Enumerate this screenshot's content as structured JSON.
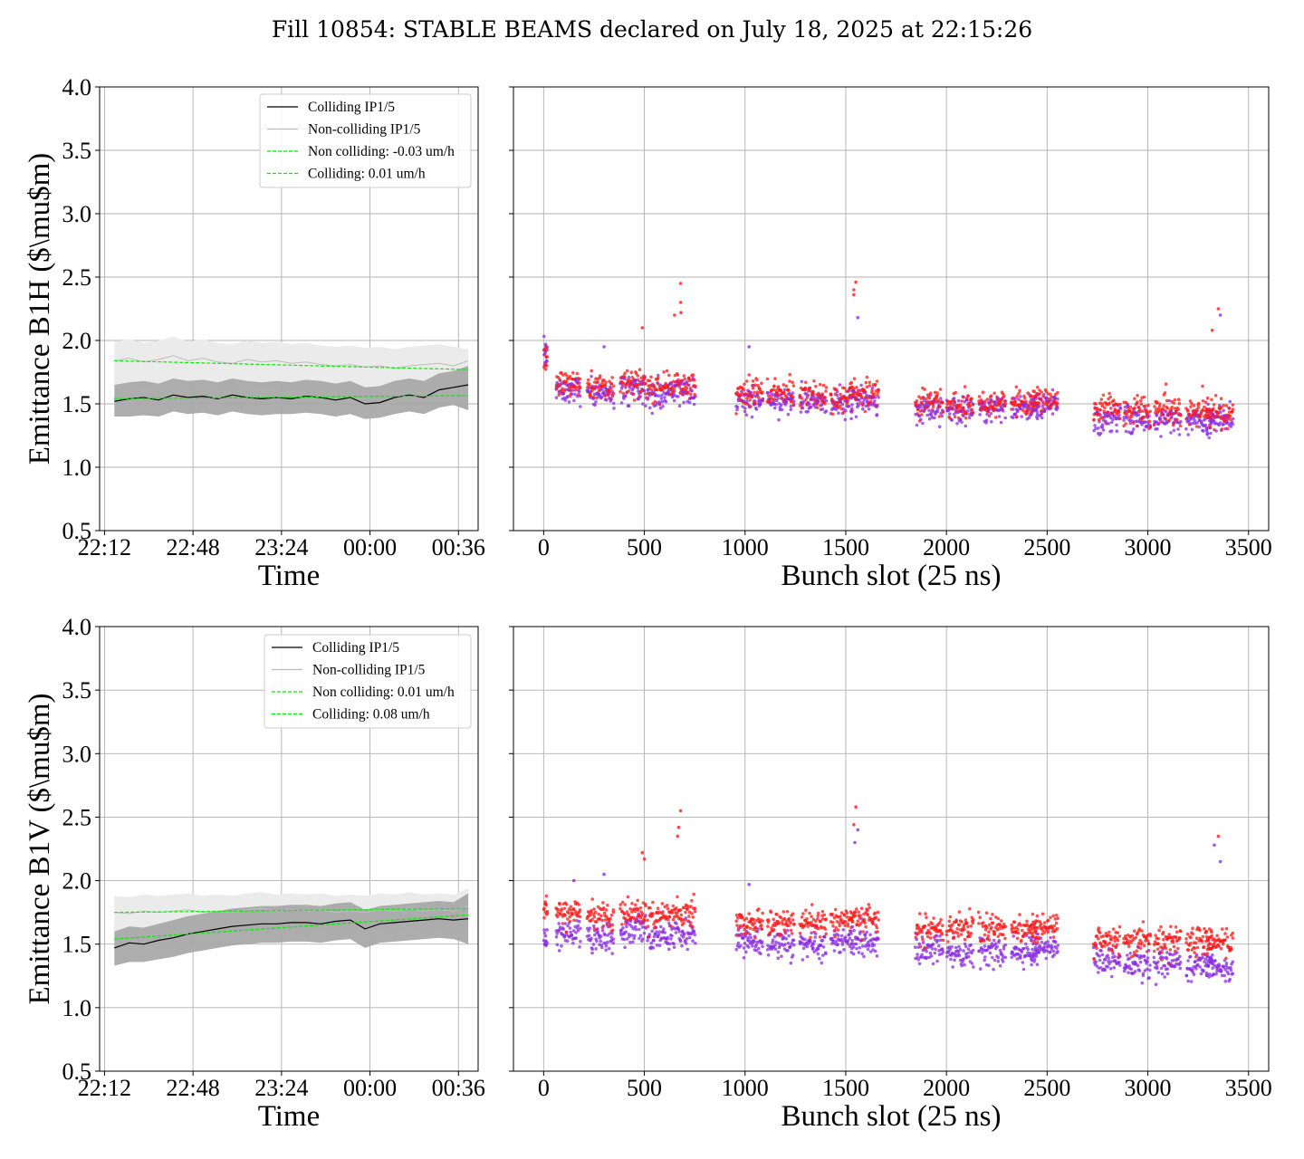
{
  "suptitle": "Fill 10854: STABLE BEAMS declared on July 18, 2025 at 22:15:26",
  "colors": {
    "colliding": "#000000",
    "noncolliding": "#bdbdbd",
    "colliding_band": "#a9a9a9",
    "noncolliding_band": "#ebebeb",
    "fit": "#00ee00",
    "b_colliding": "#ff1a1a",
    "b_noncolliding": "#8a2be2",
    "grid": "#b0b0b0"
  },
  "chart_data": [
    {
      "type": "line",
      "id": "time_h",
      "xlabel": "Time",
      "ylabel": "Emittance B1H ($\\mu$m)",
      "ylim": [
        0.5,
        4.0
      ],
      "yticks": [
        "0.5",
        "1.0",
        "1.5",
        "2.0",
        "2.5",
        "3.0",
        "3.5",
        "4.0"
      ],
      "xlim": [
        "22:10",
        "00:44"
      ],
      "xticks": [
        "22:12",
        "22:48",
        "23:24",
        "00:00",
        "00:36"
      ],
      "grid": true,
      "legend": "top-right",
      "legend_entries": [
        "Colliding IP1/5",
        "Non-colliding IP1/5",
        "Non colliding: -0.03 um/h",
        "Colliding: 0.01 um/h"
      ],
      "x": [
        "22:16",
        "22:22",
        "22:28",
        "22:34",
        "22:40",
        "22:46",
        "22:52",
        "22:58",
        "23:04",
        "23:10",
        "23:16",
        "23:22",
        "23:28",
        "23:34",
        "23:40",
        "23:46",
        "23:52",
        "23:58",
        "00:04",
        "00:10",
        "00:16",
        "00:22",
        "00:28",
        "00:34",
        "00:40"
      ],
      "series": [
        {
          "name": "Colliding IP1/5",
          "values": [
            1.52,
            1.54,
            1.55,
            1.53,
            1.57,
            1.55,
            1.56,
            1.54,
            1.57,
            1.55,
            1.54,
            1.55,
            1.54,
            1.56,
            1.55,
            1.53,
            1.55,
            1.5,
            1.51,
            1.55,
            1.57,
            1.55,
            1.61,
            1.63,
            1.65
          ],
          "band_lo": [
            1.4,
            1.4,
            1.41,
            1.4,
            1.44,
            1.42,
            1.43,
            1.41,
            1.44,
            1.42,
            1.41,
            1.42,
            1.42,
            1.43,
            1.42,
            1.4,
            1.42,
            1.38,
            1.39,
            1.42,
            1.44,
            1.42,
            1.47,
            1.49,
            1.45
          ],
          "band_hi": [
            1.65,
            1.67,
            1.68,
            1.66,
            1.7,
            1.68,
            1.69,
            1.67,
            1.7,
            1.68,
            1.67,
            1.68,
            1.67,
            1.69,
            1.68,
            1.66,
            1.68,
            1.63,
            1.64,
            1.68,
            1.7,
            1.68,
            1.74,
            1.76,
            1.8
          ]
        },
        {
          "name": "Non-colliding IP1/5",
          "values": [
            1.84,
            1.86,
            1.83,
            1.85,
            1.88,
            1.84,
            1.86,
            1.83,
            1.82,
            1.85,
            1.83,
            1.84,
            1.82,
            1.83,
            1.81,
            1.8,
            1.81,
            1.79,
            1.8,
            1.78,
            1.8,
            1.81,
            1.82,
            1.8,
            1.84
          ],
          "band_lo": [
            1.65,
            1.67,
            1.64,
            1.66,
            1.69,
            1.65,
            1.67,
            1.64,
            1.63,
            1.66,
            1.64,
            1.65,
            1.63,
            1.64,
            1.62,
            1.61,
            1.62,
            1.6,
            1.61,
            1.59,
            1.61,
            1.62,
            1.63,
            1.61,
            1.62
          ],
          "band_hi": [
            1.99,
            2.01,
            1.98,
            2.0,
            2.03,
            1.99,
            2.01,
            1.98,
            1.97,
            2.0,
            1.98,
            1.99,
            1.97,
            1.98,
            1.96,
            1.95,
            1.96,
            1.94,
            1.95,
            1.93,
            1.95,
            1.96,
            1.97,
            1.95,
            1.93
          ]
        }
      ],
      "fits": [
        {
          "name": "Non colliding: -0.03 um/h",
          "x": [
            "22:16",
            "00:40"
          ],
          "values": [
            1.84,
            1.77
          ]
        },
        {
          "name": "Colliding: 0.01 um/h",
          "x": [
            "22:16",
            "00:40"
          ],
          "values": [
            1.54,
            1.565
          ]
        }
      ]
    },
    {
      "type": "scatter",
      "id": "bunch_h",
      "xlabel": "Bunch slot (25 ns)",
      "ylim": [
        0.5,
        4.0
      ],
      "xlim": [
        -150,
        3600
      ],
      "xticks": [
        "0",
        "500",
        "1000",
        "1500",
        "2000",
        "2500",
        "3000",
        "3500"
      ],
      "grid": true,
      "trains": [
        {
          "start": 0,
          "end": 15,
          "col": 1.85,
          "non": 1.88
        },
        {
          "start": 60,
          "end": 180,
          "col": 1.67,
          "non": 1.62
        },
        {
          "start": 215,
          "end": 345,
          "col": 1.63,
          "non": 1.58
        },
        {
          "start": 380,
          "end": 505,
          "col": 1.67,
          "non": 1.62
        },
        {
          "start": 515,
          "end": 615,
          "col": 1.63,
          "non": 1.58
        },
        {
          "start": 620,
          "end": 750,
          "col": 1.65,
          "non": 1.6
        },
        {
          "start": 955,
          "end": 1085,
          "col": 1.58,
          "non": 1.52
        },
        {
          "start": 1110,
          "end": 1240,
          "col": 1.58,
          "non": 1.53
        },
        {
          "start": 1270,
          "end": 1400,
          "col": 1.57,
          "non": 1.51
        },
        {
          "start": 1425,
          "end": 1530,
          "col": 1.54,
          "non": 1.49
        },
        {
          "start": 1525,
          "end": 1660,
          "col": 1.59,
          "non": 1.53
        },
        {
          "start": 1845,
          "end": 1980,
          "col": 1.5,
          "non": 1.46
        },
        {
          "start": 2000,
          "end": 2130,
          "col": 1.5,
          "non": 1.46
        },
        {
          "start": 2160,
          "end": 2290,
          "col": 1.5,
          "non": 1.46
        },
        {
          "start": 2320,
          "end": 2450,
          "col": 1.52,
          "non": 1.47
        },
        {
          "start": 2420,
          "end": 2550,
          "col": 1.54,
          "non": 1.5
        },
        {
          "start": 2730,
          "end": 2860,
          "col": 1.45,
          "non": 1.38
        },
        {
          "start": 2880,
          "end": 3010,
          "col": 1.44,
          "non": 1.38
        },
        {
          "start": 3030,
          "end": 3160,
          "col": 1.44,
          "non": 1.38
        },
        {
          "start": 3190,
          "end": 3320,
          "col": 1.43,
          "non": 1.37
        },
        {
          "start": 3290,
          "end": 3420,
          "col": 1.42,
          "non": 1.36
        }
      ],
      "outliers": [
        [
          680,
          2.45
        ],
        [
          680,
          2.3
        ],
        [
          682,
          2.22
        ],
        [
          650,
          2.2
        ],
        [
          1550,
          2.46
        ],
        [
          1540,
          2.4
        ],
        [
          1540,
          2.36
        ],
        [
          1560,
          2.18
        ],
        [
          3350,
          2.25
        ],
        [
          3360,
          2.2
        ],
        [
          3320,
          2.08
        ],
        [
          490,
          2.1
        ],
        [
          300,
          1.95
        ],
        [
          1020,
          1.95
        ]
      ]
    },
    {
      "type": "line",
      "id": "time_v",
      "xlabel": "Time",
      "ylabel": "Emittance B1V ($\\mu$m)",
      "ylim": [
        0.5,
        4.0
      ],
      "yticks": [
        "0.5",
        "1.0",
        "1.5",
        "2.0",
        "2.5",
        "3.0",
        "3.5",
        "4.0"
      ],
      "xlim": [
        "22:10",
        "00:44"
      ],
      "xticks": [
        "22:12",
        "22:48",
        "23:24",
        "00:00",
        "00:36"
      ],
      "grid": true,
      "legend": "top-right",
      "legend_entries": [
        "Colliding IP1/5",
        "Non-colliding IP1/5",
        "Non colliding: 0.01 um/h",
        "Colliding: 0.08 um/h"
      ],
      "x": [
        "22:16",
        "22:22",
        "22:28",
        "22:34",
        "22:40",
        "22:46",
        "22:52",
        "22:58",
        "23:04",
        "23:10",
        "23:16",
        "23:22",
        "23:28",
        "23:34",
        "23:40",
        "23:46",
        "23:52",
        "23:58",
        "00:04",
        "00:10",
        "00:16",
        "00:22",
        "00:28",
        "00:34",
        "00:40"
      ],
      "series": [
        {
          "name": "Colliding IP1/5",
          "values": [
            1.47,
            1.51,
            1.5,
            1.53,
            1.55,
            1.58,
            1.6,
            1.62,
            1.64,
            1.65,
            1.66,
            1.66,
            1.67,
            1.67,
            1.66,
            1.68,
            1.69,
            1.62,
            1.66,
            1.67,
            1.68,
            1.69,
            1.7,
            1.69,
            1.7
          ],
          "band_lo": [
            1.33,
            1.36,
            1.36,
            1.38,
            1.4,
            1.43,
            1.45,
            1.47,
            1.49,
            1.5,
            1.51,
            1.51,
            1.52,
            1.52,
            1.51,
            1.53,
            1.54,
            1.47,
            1.51,
            1.52,
            1.53,
            1.54,
            1.55,
            1.54,
            1.5
          ],
          "band_hi": [
            1.6,
            1.64,
            1.63,
            1.66,
            1.69,
            1.72,
            1.74,
            1.76,
            1.78,
            1.79,
            1.8,
            1.8,
            1.81,
            1.81,
            1.8,
            1.82,
            1.83,
            1.77,
            1.8,
            1.81,
            1.82,
            1.83,
            1.84,
            1.83,
            1.9
          ]
        },
        {
          "name": "Non-colliding IP1/5",
          "values": [
            1.75,
            1.74,
            1.76,
            1.75,
            1.76,
            1.77,
            1.75,
            1.76,
            1.75,
            1.77,
            1.78,
            1.76,
            1.77,
            1.76,
            1.77,
            1.75,
            1.76,
            1.75,
            1.77,
            1.76,
            1.78,
            1.76,
            1.77,
            1.76,
            1.8
          ],
          "band_lo": [
            1.6,
            1.59,
            1.61,
            1.6,
            1.61,
            1.62,
            1.6,
            1.61,
            1.6,
            1.62,
            1.63,
            1.61,
            1.62,
            1.61,
            1.62,
            1.6,
            1.61,
            1.6,
            1.62,
            1.61,
            1.63,
            1.61,
            1.62,
            1.61,
            1.6
          ],
          "band_hi": [
            1.88,
            1.87,
            1.89,
            1.88,
            1.89,
            1.9,
            1.88,
            1.89,
            1.88,
            1.9,
            1.91,
            1.89,
            1.9,
            1.89,
            1.9,
            1.88,
            1.89,
            1.88,
            1.9,
            1.89,
            1.91,
            1.89,
            1.9,
            1.89,
            1.94
          ]
        }
      ],
      "fits": [
        {
          "name": "Non colliding: 0.01 um/h",
          "x": [
            "22:16",
            "00:40"
          ],
          "values": [
            1.75,
            1.78
          ]
        },
        {
          "name": "Colliding: 0.08 um/h",
          "x": [
            "22:16",
            "00:40"
          ],
          "values": [
            1.54,
            1.73
          ]
        }
      ]
    },
    {
      "type": "scatter",
      "id": "bunch_v",
      "xlabel": "Bunch slot (25 ns)",
      "ylim": [
        0.5,
        4.0
      ],
      "xlim": [
        -150,
        3600
      ],
      "xticks": [
        "0",
        "500",
        "1000",
        "1500",
        "2000",
        "2500",
        "3000",
        "3500"
      ],
      "grid": true,
      "trains": [
        {
          "start": 0,
          "end": 15,
          "col": 1.78,
          "non": 1.55
        },
        {
          "start": 60,
          "end": 180,
          "col": 1.74,
          "non": 1.58
        },
        {
          "start": 215,
          "end": 345,
          "col": 1.72,
          "non": 1.55
        },
        {
          "start": 380,
          "end": 505,
          "col": 1.75,
          "non": 1.6
        },
        {
          "start": 515,
          "end": 615,
          "col": 1.72,
          "non": 1.55
        },
        {
          "start": 620,
          "end": 750,
          "col": 1.74,
          "non": 1.57
        },
        {
          "start": 955,
          "end": 1085,
          "col": 1.67,
          "non": 1.51
        },
        {
          "start": 1110,
          "end": 1240,
          "col": 1.67,
          "non": 1.5
        },
        {
          "start": 1270,
          "end": 1400,
          "col": 1.68,
          "non": 1.5
        },
        {
          "start": 1425,
          "end": 1530,
          "col": 1.7,
          "non": 1.52
        },
        {
          "start": 1525,
          "end": 1660,
          "col": 1.7,
          "non": 1.52
        },
        {
          "start": 1845,
          "end": 1980,
          "col": 1.62,
          "non": 1.45
        },
        {
          "start": 2000,
          "end": 2130,
          "col": 1.62,
          "non": 1.44
        },
        {
          "start": 2160,
          "end": 2290,
          "col": 1.62,
          "non": 1.44
        },
        {
          "start": 2320,
          "end": 2450,
          "col": 1.62,
          "non": 1.44
        },
        {
          "start": 2420,
          "end": 2550,
          "col": 1.64,
          "non": 1.46
        },
        {
          "start": 2730,
          "end": 2860,
          "col": 1.54,
          "non": 1.36
        },
        {
          "start": 2880,
          "end": 3010,
          "col": 1.53,
          "non": 1.35
        },
        {
          "start": 3030,
          "end": 3160,
          "col": 1.53,
          "non": 1.35
        },
        {
          "start": 3190,
          "end": 3320,
          "col": 1.52,
          "non": 1.33
        },
        {
          "start": 3290,
          "end": 3420,
          "col": 1.52,
          "non": 1.32
        }
      ],
      "outliers": [
        [
          680,
          2.55
        ],
        [
          670,
          2.42
        ],
        [
          665,
          2.35
        ],
        [
          1550,
          2.58
        ],
        [
          1540,
          2.44
        ],
        [
          1560,
          2.4
        ],
        [
          1545,
          2.3
        ],
        [
          3350,
          2.35
        ],
        [
          3330,
          2.28
        ],
        [
          3360,
          2.15
        ],
        [
          490,
          2.22
        ],
        [
          500,
          2.17
        ],
        [
          300,
          2.05
        ],
        [
          150,
          2.0
        ],
        [
          1020,
          1.97
        ]
      ]
    }
  ]
}
